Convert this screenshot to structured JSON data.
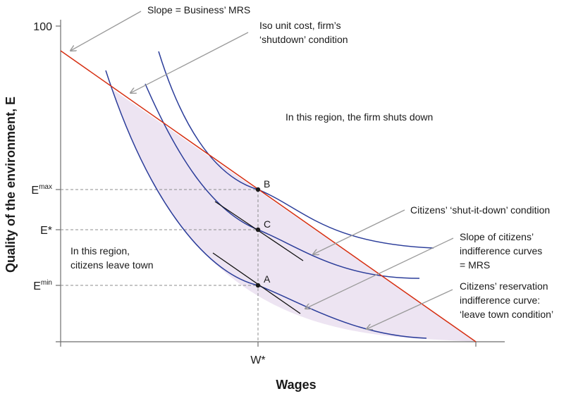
{
  "diagram": {
    "y_axis_title": "Quality of the environment, E",
    "x_axis_title": "Wages",
    "y_tick_max": "100",
    "x_tick": "W*",
    "y_ticks": [
      {
        "base": "E",
        "sup": "max"
      },
      {
        "base": "E*",
        "sup": ""
      },
      {
        "base": "E",
        "sup": "min"
      }
    ],
    "points": [
      "B",
      "C",
      "A"
    ],
    "annotations": {
      "slope_business": "Slope = Business’ MRS",
      "iso_unit_cost": [
        "Iso unit cost, firm’s",
        "‘shutdown’ condition"
      ],
      "firm_region": "In this region, the firm shuts down",
      "shut_it_down": "Citizens’ ‘shut-it-down’ condition",
      "slope_citizens": [
        "Slope of citizens’",
        "indifference curves",
        "= MRS"
      ],
      "citizens_region": [
        "In this region,",
        "citizens leave town"
      ],
      "reservation": [
        "Citizens’ reservation",
        "indifference curve:",
        "‘leave town condition’"
      ]
    },
    "colors": {
      "isocost": "#d62f12",
      "indifference": "#2b3d9a",
      "tangent": "#111111",
      "shading": "#ede4f2",
      "arrow": "#9a9a9a",
      "guide": "#8c8c8c"
    }
  }
}
